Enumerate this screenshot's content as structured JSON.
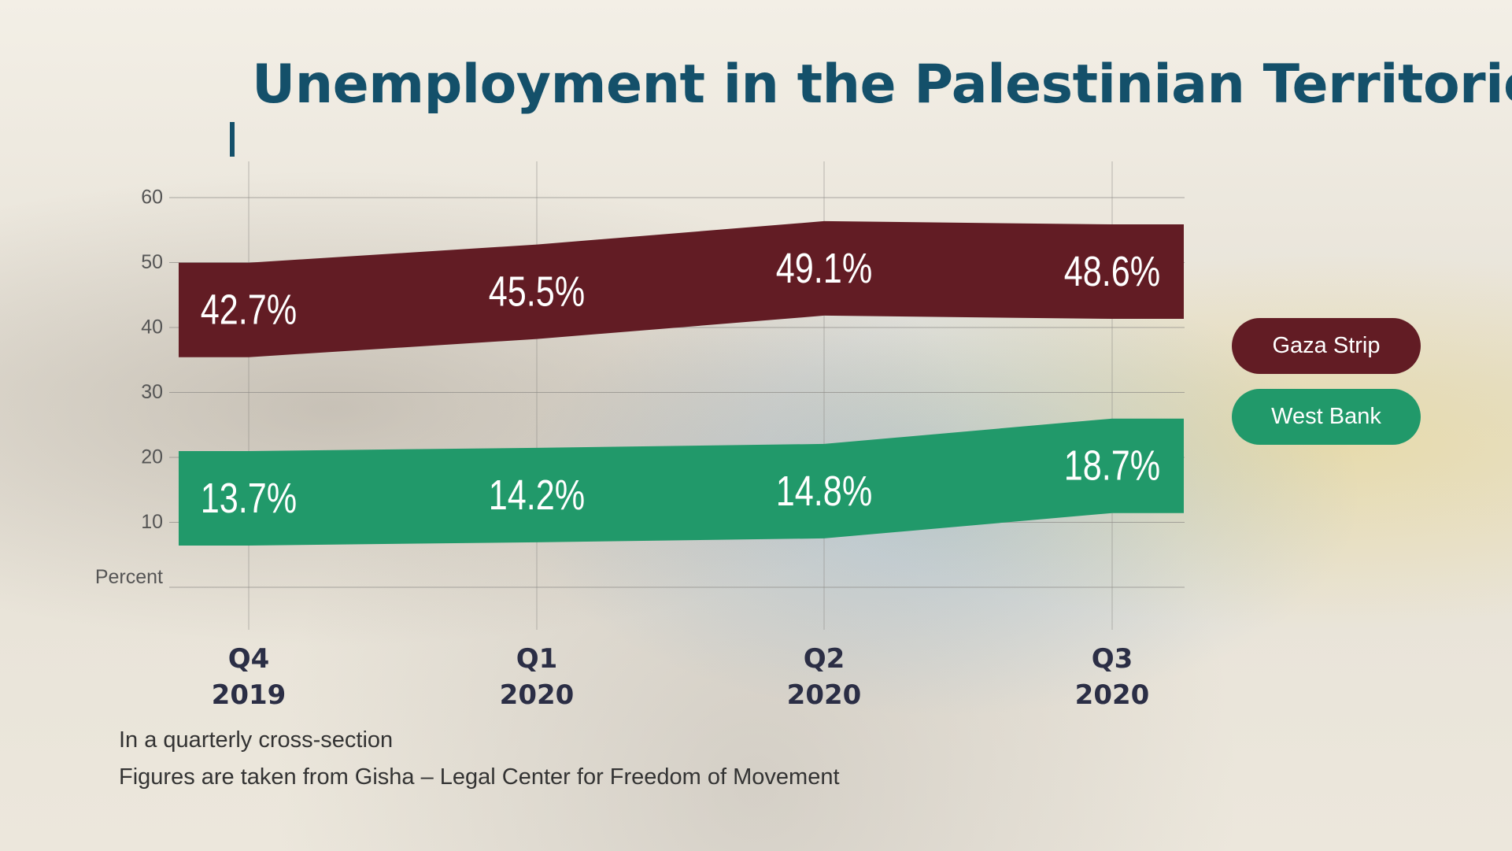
{
  "title": "Unemployment in the Palestinian Territories",
  "footnotes": [
    "In a quarterly cross-section",
    "Figures are taken from Gisha – Legal Center for Freedom of Movement"
  ],
  "colors": {
    "title": "#14506a",
    "gaza": "#621c24",
    "west_bank": "#21996a",
    "axis_text": "#555555",
    "quarter_labels": "#2b2e45"
  },
  "chart_data": {
    "type": "area",
    "categories": [
      [
        "Q4",
        "2019"
      ],
      [
        "Q1",
        "2020"
      ],
      [
        "Q2",
        "2020"
      ],
      [
        "Q3",
        "2020"
      ]
    ],
    "series": [
      {
        "name": "Gaza Strip",
        "values": [
          42.7,
          45.5,
          49.1,
          48.6
        ],
        "labels": [
          "42.7%",
          "45.5%",
          "49.1%",
          "48.6%"
        ],
        "color": "#621c24"
      },
      {
        "name": "West Bank",
        "values": [
          13.7,
          14.2,
          14.8,
          18.7
        ],
        "labels": [
          "13.7%",
          "14.2%",
          "14.8%",
          "18.7%"
        ],
        "color": "#21996a"
      }
    ],
    "ylabel": "Percent",
    "yticks": [
      10,
      20,
      30,
      40,
      50,
      60
    ],
    "ylim": [
      0,
      60
    ],
    "grid": true,
    "legend": "right"
  }
}
